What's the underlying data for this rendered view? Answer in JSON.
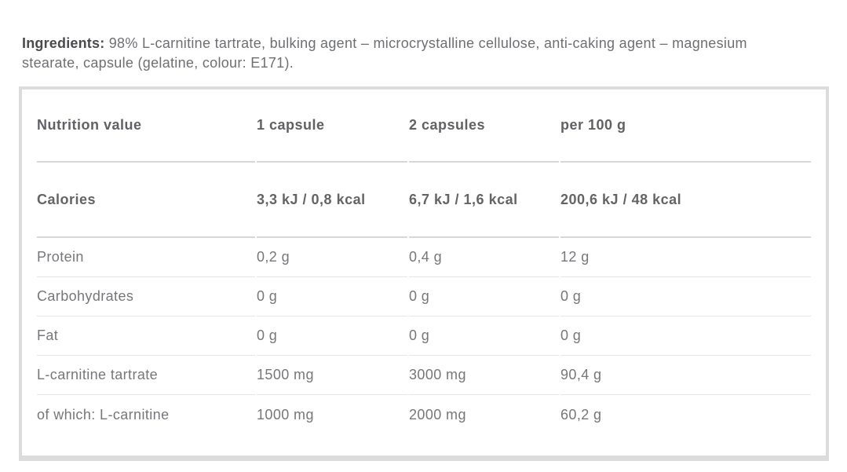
{
  "ingredients": {
    "label": "Ingredients:",
    "text": " 98% L-carnitine tartrate, bulking agent – microcrystalline cellulose, anti-caking agent – magnesium stearate, capsule (gelatine, colour: E171)."
  },
  "table": {
    "headers": [
      "Nutrition value",
      "1 capsule",
      "2 capsules",
      "per 100 g"
    ],
    "rows": [
      {
        "name": "Calories",
        "capsule1": "3,3 kJ / 0,8 kcal",
        "capsule2": "6,7 kJ / 1,6 kcal",
        "per100g": "200,6 kJ / 48 kcal"
      },
      {
        "name": "Protein",
        "capsule1": "0,2 g",
        "capsule2": "0,4 g",
        "per100g": "12 g"
      },
      {
        "name": "Carbohydrates",
        "capsule1": "0 g",
        "capsule2": "0 g",
        "per100g": "0 g"
      },
      {
        "name": "Fat",
        "capsule1": "0 g",
        "capsule2": "0 g",
        "per100g": "0 g"
      },
      {
        "name": "L-carnitine tartrate",
        "capsule1": "1500 mg",
        "capsule2": "3000 mg",
        "per100g": "90,4 g"
      },
      {
        "name": "of which: L-carnitine",
        "capsule1": "1000 mg",
        "capsule2": "2000 mg",
        "per100g": "60,2 g"
      }
    ]
  },
  "colors": {
    "card_border": "#dcdcdc",
    "strong_rule": "#d7d7d8",
    "light_rule": "#e6e6e7",
    "bold_text": "#636466",
    "body_text": "#76777a",
    "ingredients_label": "#4a4b4d"
  }
}
